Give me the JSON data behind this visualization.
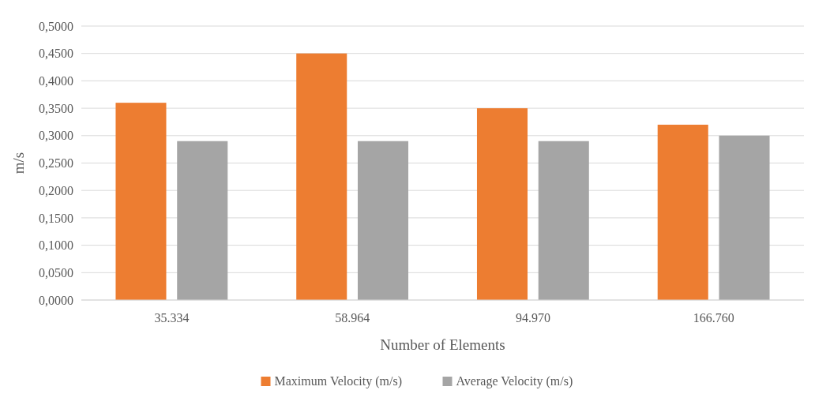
{
  "chart_data": {
    "type": "bar",
    "xlabel": "Number of Elements",
    "ylabel": "m/s",
    "categories": [
      "35.334",
      "58.964",
      "94.970",
      "166.760"
    ],
    "series": [
      {
        "name": "Maximum Velocity (m/s)",
        "color": "#ed7d31",
        "values": [
          0.36,
          0.45,
          0.35,
          0.32
        ]
      },
      {
        "name": "Average Velocity (m/s)",
        "color": "#a5a5a5",
        "values": [
          0.29,
          0.29,
          0.29,
          0.3
        ]
      }
    ],
    "ylim": [
      0,
      0.5
    ],
    "yticks": [
      {
        "value": 0,
        "label": "0,0000"
      },
      {
        "value": 0.05,
        "label": "0,0500"
      },
      {
        "value": 0.1,
        "label": "0,1000"
      },
      {
        "value": 0.15,
        "label": "0,1500"
      },
      {
        "value": 0.2,
        "label": "0,2000"
      },
      {
        "value": 0.25,
        "label": "0,2500"
      },
      {
        "value": 0.3,
        "label": "0,3000"
      },
      {
        "value": 0.35,
        "label": "0,3500"
      },
      {
        "value": 0.4,
        "label": "0,4000"
      },
      {
        "value": 0.45,
        "label": "0,4500"
      },
      {
        "value": 0.5,
        "label": "0,5000"
      }
    ],
    "grid": "y",
    "legend": "bottom"
  }
}
